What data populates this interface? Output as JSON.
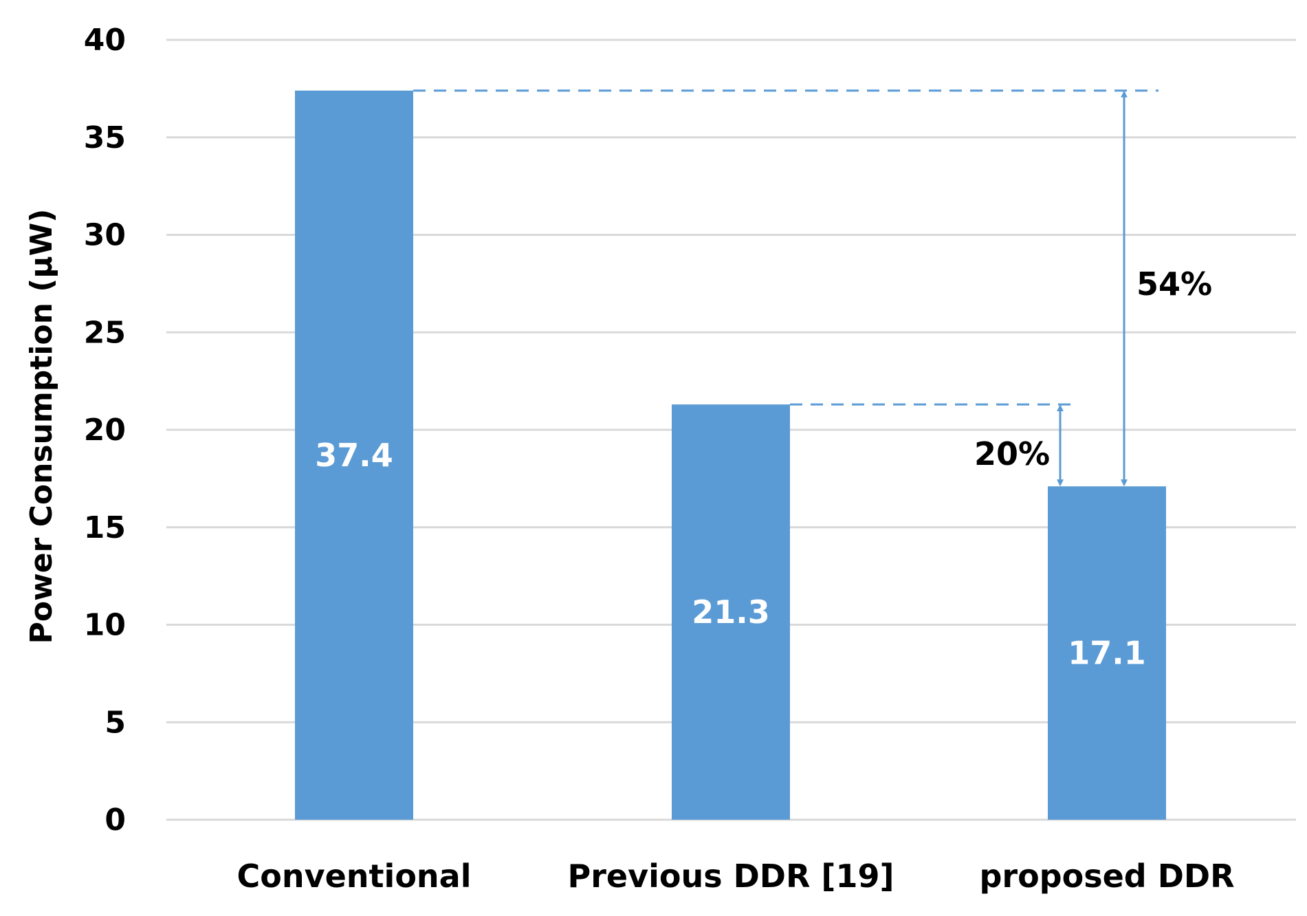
{
  "chart_data": {
    "type": "bar",
    "title": "",
    "xlabel": "",
    "ylabel": "Power Consumption (μW)",
    "ylim": [
      0,
      40
    ],
    "yticks": [
      0,
      5,
      10,
      15,
      20,
      25,
      30,
      35,
      40
    ],
    "grid": true,
    "legend": "none",
    "categories": [
      "Conventional",
      "Previous DDR [19]",
      "proposed DDR"
    ],
    "values": [
      37.4,
      21.3,
      17.1
    ],
    "data_labels": [
      "37.4",
      "21.3",
      "17.1"
    ],
    "bar_color": "#5B9BD5",
    "grid_color": "#D9D9D9",
    "annotations": [
      {
        "label": "54%",
        "from_category": "Conventional",
        "to_category": "proposed DDR",
        "from_value": 37.4,
        "to_value": 17.1
      },
      {
        "label": "20%",
        "from_category": "Previous DDR [19]",
        "to_category": "proposed DDR",
        "from_value": 21.3,
        "to_value": 17.1
      }
    ]
  }
}
